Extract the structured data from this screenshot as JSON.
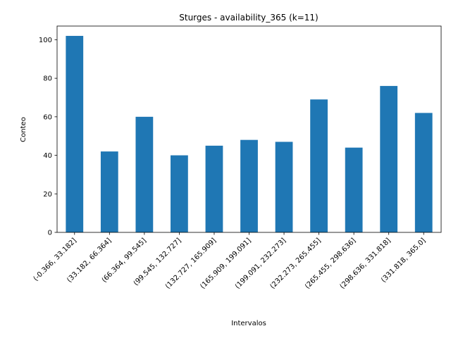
{
  "chart_data": {
    "type": "bar",
    "title": "Sturges - availability_365 (k=11)",
    "xlabel": "Intervalos",
    "ylabel": "Conteo",
    "categories": [
      "(-0.366, 33.182]",
      "(33.182, 66.364]",
      "(66.364, 99.545]",
      "(99.545, 132.727]",
      "(132.727, 165.909]",
      "(165.909, 199.091]",
      "(199.091, 232.273]",
      "(232.273, 265.455]",
      "(265.455, 298.636]",
      "(298.636, 331.818]",
      "(331.818, 365.0]"
    ],
    "values": [
      102,
      42,
      60,
      40,
      45,
      48,
      47,
      69,
      44,
      76,
      62
    ],
    "ylim": [
      0,
      107.1
    ],
    "yticks": [
      0,
      20,
      40,
      60,
      80,
      100
    ],
    "grid": false,
    "legend": "none",
    "bar_color": "#1f77b4"
  }
}
